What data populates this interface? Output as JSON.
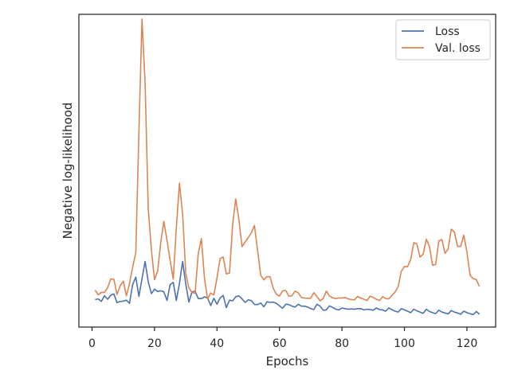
{
  "chart_data": {
    "type": "line",
    "xlabel": "Epochs",
    "ylabel": "Negative log-likelihood",
    "xlim": [
      -4.2,
      129.2
    ],
    "ylim": [
      0,
      100
    ],
    "x_ticks": [
      0,
      20,
      40,
      60,
      80,
      100,
      120
    ],
    "grid": false,
    "y_tick_labels_shown": false,
    "legend_position": "top-right",
    "series": [
      {
        "name": "Loss",
        "color": "#4c72b0",
        "x": [
          1,
          2,
          3,
          4,
          5,
          6,
          7,
          8,
          9,
          10,
          11,
          12,
          13,
          14,
          15,
          16,
          17,
          18,
          19,
          20,
          21,
          22,
          23,
          24,
          25,
          26,
          27,
          28,
          29,
          30,
          31,
          32,
          33,
          34,
          35,
          36,
          37,
          38,
          39,
          40,
          41,
          42,
          43,
          44,
          45,
          46,
          47,
          48,
          49,
          50,
          51,
          52,
          53,
          54,
          55,
          56,
          57,
          58,
          59,
          60,
          61,
          62,
          63,
          64,
          65,
          66,
          67,
          68,
          69,
          70,
          71,
          72,
          73,
          74,
          75,
          76,
          77,
          78,
          79,
          80,
          81,
          82,
          83,
          84,
          85,
          86,
          87,
          88,
          89,
          90,
          91,
          92,
          93,
          94,
          95,
          96,
          97,
          98,
          99,
          100,
          101,
          102,
          103,
          104,
          105,
          106,
          107,
          108,
          109,
          110,
          111,
          112,
          113,
          114,
          115,
          116,
          117,
          118,
          119,
          120,
          121,
          122,
          123,
          124
        ],
        "values": [
          8.8,
          9.0,
          8.2,
          10.0,
          8.9,
          10.2,
          10.6,
          7.8,
          8.2,
          8.3,
          8.6,
          7.6,
          13.5,
          16.0,
          9.8,
          15.5,
          21.0,
          14.5,
          10.7,
          12.1,
          11.4,
          11.6,
          11.3,
          8.5,
          13.6,
          14.3,
          8.5,
          14.0,
          21.0,
          13.8,
          8.0,
          11.2,
          11.5,
          9.1,
          9.1,
          9.7,
          9.3,
          6.9,
          9.2,
          7.3,
          9.3,
          10.1,
          6.2,
          8.6,
          8.4,
          9.7,
          10.0,
          9.0,
          7.9,
          8.7,
          8.5,
          7.2,
          7.2,
          7.7,
          6.5,
          8.1,
          7.9,
          8.0,
          7.6,
          6.8,
          6.0,
          7.3,
          7.2,
          6.7,
          6.4,
          7.3,
          6.7,
          6.7,
          6.4,
          5.9,
          5.6,
          7.3,
          6.7,
          5.4,
          5.5,
          6.8,
          6.3,
          5.7,
          5.5,
          6.1,
          5.9,
          5.7,
          5.8,
          5.7,
          5.9,
          5.9,
          5.5,
          5.7,
          5.6,
          5.4,
          6.1,
          5.6,
          5.5,
          5.1,
          6.1,
          5.6,
          5.1,
          4.8,
          5.9,
          5.5,
          5.1,
          4.6,
          5.7,
          5.2,
          4.8,
          4.4,
          5.7,
          5.0,
          4.6,
          4.3,
          5.4,
          4.8,
          4.5,
          4.2,
          5.3,
          4.8,
          4.5,
          4.1,
          5.1,
          4.6,
          4.3,
          4.0,
          5.0,
          4.1
        ]
      },
      {
        "name": "Val. loss",
        "color": "#dd8452",
        "x": [
          1,
          2,
          3,
          4,
          5,
          6,
          7,
          8,
          9,
          10,
          11,
          12,
          13,
          14,
          15,
          16,
          17,
          18,
          19,
          20,
          21,
          22,
          23,
          24,
          25,
          26,
          27,
          28,
          29,
          30,
          31,
          32,
          33,
          34,
          35,
          36,
          37,
          38,
          39,
          40,
          41,
          42,
          43,
          44,
          45,
          46,
          47,
          48,
          49,
          50,
          51,
          52,
          53,
          54,
          55,
          56,
          57,
          58,
          59,
          60,
          61,
          62,
          63,
          64,
          65,
          66,
          67,
          68,
          69,
          70,
          71,
          72,
          73,
          74,
          75,
          76,
          77,
          78,
          79,
          80,
          81,
          82,
          83,
          84,
          85,
          86,
          87,
          88,
          89,
          90,
          91,
          92,
          93,
          94,
          95,
          96,
          97,
          98,
          99,
          100,
          101,
          102,
          103,
          104,
          105,
          106,
          107,
          108,
          109,
          110,
          111,
          112,
          113,
          114,
          115,
          116,
          117,
          118,
          119,
          120,
          121,
          122,
          123,
          124
        ],
        "values": [
          11.8,
          10.3,
          11.1,
          11.1,
          12.6,
          15.4,
          15.3,
          10.4,
          13.2,
          14.7,
          10.0,
          13.9,
          19.1,
          23.8,
          62.0,
          98.5,
          78.0,
          38.0,
          24.6,
          15.2,
          17.9,
          27.0,
          33.8,
          27.7,
          21.3,
          15.3,
          31.8,
          46.0,
          36.0,
          17.2,
          12.5,
          11.1,
          10.8,
          23.5,
          28.3,
          15.6,
          9.0,
          10.9,
          10.3,
          15.7,
          21.9,
          22.4,
          17.0,
          17.3,
          32.6,
          41.0,
          34.6,
          25.7,
          27.2,
          28.6,
          30.1,
          32.5,
          24.4,
          16.6,
          15.1,
          16.1,
          16.1,
          12.4,
          10.5,
          9.9,
          11.6,
          11.7,
          9.9,
          10.0,
          11.5,
          11.0,
          9.5,
          9.3,
          9.2,
          9.2,
          11.0,
          9.8,
          8.4,
          9.1,
          11.5,
          10.0,
          9.4,
          9.1,
          9.3,
          9.3,
          9.5,
          9.0,
          8.8,
          8.7,
          9.8,
          9.3,
          8.9,
          8.5,
          9.9,
          9.5,
          8.9,
          8.5,
          9.7,
          9.1,
          9.0,
          10.1,
          11.2,
          13.0,
          17.8,
          19.4,
          19.3,
          21.6,
          27.0,
          26.6,
          22.4,
          23.3,
          28.1,
          25.8,
          19.8,
          20.0,
          27.5,
          28.0,
          23.6,
          25.0,
          31.3,
          30.4,
          25.8,
          25.8,
          29.4,
          24.1,
          16.6,
          15.5,
          15.2,
          13.0
        ]
      }
    ]
  }
}
